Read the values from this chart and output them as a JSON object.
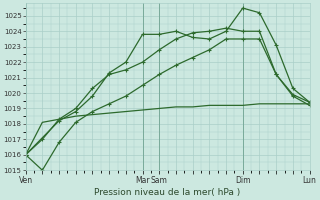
{
  "xlabel": "Pression niveau de la mer( hPa )",
  "bg_color": "#cce8e0",
  "grid_color": "#aacfc8",
  "line_color": "#2d6a2d",
  "ylim": [
    1015,
    1025.8
  ],
  "yticks": [
    1015,
    1016,
    1017,
    1018,
    1019,
    1020,
    1021,
    1022,
    1023,
    1024,
    1025
  ],
  "day_labels": [
    "Ven",
    "Mar",
    "Sam",
    "Dim",
    "Lun"
  ],
  "day_positions": [
    0,
    7,
    8,
    13,
    17
  ],
  "n_points": 18,
  "line1_x": [
    0,
    1,
    2,
    3,
    4,
    5,
    6,
    7,
    8,
    9,
    10,
    11,
    12,
    13,
    14,
    15,
    16,
    17
  ],
  "line1_y": [
    1016.0,
    1015.0,
    1016.8,
    1018.1,
    1018.8,
    1019.3,
    1019.8,
    1020.5,
    1021.2,
    1021.8,
    1022.3,
    1022.8,
    1023.5,
    1023.5,
    1023.5,
    1021.2,
    1019.9,
    1019.4
  ],
  "line2_x": [
    0,
    1,
    2,
    3,
    4,
    5,
    6,
    7,
    8,
    9,
    10,
    11,
    12,
    13,
    14,
    15,
    16,
    17
  ],
  "line2_y": [
    1016.0,
    1017.0,
    1018.3,
    1019.0,
    1020.3,
    1021.2,
    1021.5,
    1022.0,
    1022.8,
    1023.5,
    1023.9,
    1024.0,
    1024.2,
    1024.0,
    1024.0,
    1021.2,
    1019.8,
    1019.2
  ],
  "line3_x": [
    0,
    2,
    3,
    4,
    5,
    6,
    7,
    8,
    9,
    10,
    11,
    12,
    13,
    14,
    15,
    16,
    17
  ],
  "line3_y": [
    1016.0,
    1018.2,
    1018.8,
    1019.8,
    1021.3,
    1022.0,
    1023.8,
    1023.8,
    1024.0,
    1023.6,
    1023.5,
    1024.0,
    1025.5,
    1025.2,
    1023.1,
    1020.3,
    1019.4
  ],
  "line4_x": [
    0,
    1,
    2,
    3,
    4,
    5,
    6,
    7,
    8,
    9,
    10,
    11,
    12,
    13,
    14,
    15,
    16,
    17
  ],
  "line4_y": [
    1016.0,
    1018.1,
    1018.3,
    1018.5,
    1018.6,
    1018.7,
    1018.8,
    1018.9,
    1019.0,
    1019.1,
    1019.1,
    1019.2,
    1019.2,
    1019.2,
    1019.3,
    1019.3,
    1019.3,
    1019.3
  ],
  "vline_positions": [
    0,
    7,
    8,
    13,
    17
  ],
  "marker": "+",
  "markersize": 3.5,
  "linewidth": 0.9
}
